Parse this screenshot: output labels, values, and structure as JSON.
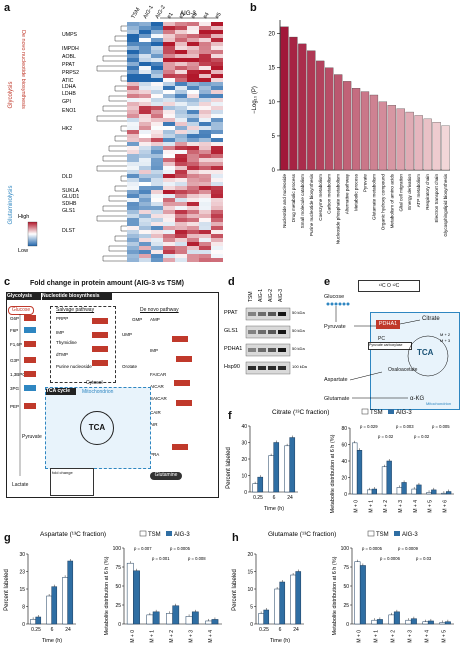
{
  "labels": {
    "a": "a",
    "b": "b",
    "c": "c",
    "d": "d",
    "e": "e",
    "f": "f",
    "g": "g",
    "h": "h"
  },
  "panel_a": {
    "columns": [
      "TSM",
      "AIG-1",
      "AIG-2",
      "#1",
      "#2",
      "#3",
      "#4",
      "#5"
    ],
    "group_label": "AIG-3",
    "side_denovo": "De novo nucleotide biosynthesis",
    "side_glycolysis": "Glycolysis",
    "side_glutaminolysis": "Glutaminolysis",
    "genes_denovo": [
      "UMPS",
      "IMPDH",
      "AOBL",
      "PPAT",
      "PRPS2",
      "ATIC"
    ],
    "genes_glyco": [
      "LDHA",
      "LDHB",
      "GPI",
      "ENO1",
      "HK2"
    ],
    "genes_gluta": [
      "DLD",
      "SUKLA",
      "GLUD1",
      "SDHB",
      "GLS1",
      "DLST"
    ],
    "legend_high": "High",
    "legend_low": "Low"
  },
  "panel_b": {
    "ylabel": "−Log₁₀ (P)",
    "yticks": [
      "0",
      "5",
      "10",
      "15",
      "20"
    ],
    "colors": {
      "dark": "#a1183a",
      "light": "#f2d6d8"
    }
  },
  "panel_c": {
    "title": "Fold change in protein amount (AIG-3 vs TSM)",
    "glycolysis": "Glycolysis",
    "nucleotide": "Nucleotide biosynthesis",
    "salvage": "Salvage pathway",
    "denovo": "De novo pathway",
    "tca": "TCA cycle",
    "mito": "Mitochondrion",
    "cytosol": "Cytosol",
    "glucose": "Glucose",
    "glutamine": "Glutamine",
    "center_tca": "TCA",
    "lactate": "Lactate",
    "pyruvate": "Pyruvate",
    "fold_label": "fold change"
  },
  "panel_d": {
    "cols": [
      "TSM",
      "AIG-1",
      "AIG-2",
      "AIG-3"
    ],
    "rows": [
      "PPAT",
      "GLS1",
      "PDHA1",
      "Hsp90"
    ],
    "kda": [
      "50 kDa",
      "50 kDa",
      "50 kDa",
      "100 kDa"
    ]
  },
  "panel_e": {
    "legend": "¹³C O ¹²C",
    "glucose": "Glucose",
    "pyruvate": "Pyruvate",
    "pdha1": "PDHA1",
    "pc": "PC",
    "pc_sub": "Pyruvate carboxylase",
    "citrate": "Citrate",
    "tca": "TCA",
    "oxaloacetate": "Oxaloacetate",
    "aspartate": "Aspartate",
    "glutamate": "Glutamate",
    "akg": "α-KG",
    "mito": "Mitochondrion",
    "m_plus": [
      "M + 2",
      "M + 3"
    ]
  },
  "panel_f": {
    "title": "Citrate (¹³C fraction)",
    "legend": [
      "TSM",
      "AIG-3"
    ],
    "ylabel_left": "Percent labeled",
    "ylabel_right": "Metabolite distribution at 6 h (%)",
    "xlabel": "Time (h)",
    "xticks": [
      "0.25",
      "6",
      "24"
    ],
    "mticks": [
      "M + 0",
      "M + 1",
      "M + 2",
      "M + 3",
      "M + 4",
      "M + 5",
      "M + 6"
    ],
    "pvals": [
      "p = 0.029",
      "p = 0.02",
      "p = 0.003",
      "p = 0.02",
      "p = 0.005"
    ]
  },
  "panel_g": {
    "title": "Aspartate (¹³C fraction)",
    "legend": [
      "TSM",
      "AIG-3"
    ],
    "ylabel_left": "Percent labeled",
    "ylabel_right": "Metabolite distribution at 6 h (%)",
    "xlabel": "Time (h)",
    "xticks": [
      "0.25",
      "6",
      "24"
    ],
    "mticks": [
      "M + 0",
      "M + 1",
      "M + 2",
      "M + 3",
      "M + 4"
    ],
    "pvals": [
      "p = 0.007",
      "p = 0.001",
      "p = 0.0005",
      "p = 0.008"
    ]
  },
  "panel_h": {
    "title": "Glutamate (¹³C fraction)",
    "legend": [
      "TSM",
      "AIG-3"
    ],
    "ylabel_left": "Percent labeled",
    "ylabel_right": "Metabolite distribution at 6 h (%)",
    "xlabel": "Time (h)",
    "xticks": [
      "0.25",
      "6",
      "24"
    ],
    "mticks": [
      "M + 0",
      "M + 1",
      "M + 2",
      "M + 3",
      "M + 4",
      "M + 5"
    ],
    "pvals": [
      "p = 0.0005",
      "p = 0.0006",
      "p = 0.0009",
      "p = 0.03"
    ]
  },
  "colors": {
    "tsm": "#ffffff",
    "aig3": "#2f6ea3",
    "accent": "#c0392b"
  },
  "chart_data": [
    {
      "type": "bar",
      "title": "",
      "ylabel": "−Log₁₀ (P)",
      "ylim": [
        0,
        22
      ],
      "categories": [
        "Nucleotide and nucleoside",
        "Drug metabolic process",
        "Small molecule catabolism",
        "Purine nucleotide biosynthesis",
        "Coenzyme metabolism",
        "Carbon metabolism",
        "Nucleoside phosphate metabolism",
        "Alternative pathway",
        "Metabolic process",
        "Pyruvate",
        "Glutamate metabolism",
        "Organic hydroxy compound",
        "Metabolism of amino acids",
        "Glial cell migration",
        "Energy derivation",
        "ATP metabolism",
        "Respiratory chain",
        "Electron transport chain",
        "Glycosphingolipid biosynthesis"
      ],
      "values": [
        21,
        19.5,
        18.5,
        17.5,
        16,
        15,
        14,
        13,
        12,
        11.5,
        11,
        10,
        9.5,
        9,
        8.5,
        8,
        7.5,
        7,
        6.5
      ]
    },
    {
      "type": "bar",
      "title": "Citrate (¹³C fraction)",
      "xlabel": "Time (h)",
      "ylabel": "Percent labeled",
      "categories": [
        "0.25",
        "6",
        "24"
      ],
      "series": [
        {
          "name": "TSM",
          "values": [
            5,
            22,
            28
          ]
        },
        {
          "name": "AIG-3",
          "values": [
            9,
            30,
            33
          ]
        }
      ],
      "ylim": [
        0,
        40
      ]
    },
    {
      "type": "bar",
      "title": "Citrate (¹³C fraction)",
      "ylabel": "Metabolite distribution at 6 h (%)",
      "categories": [
        "M + 0",
        "M + 1",
        "M + 2",
        "M + 3",
        "M + 4",
        "M + 5",
        "M + 6"
      ],
      "series": [
        {
          "name": "TSM",
          "values": [
            62,
            5,
            33,
            8,
            6,
            2,
            1
          ]
        },
        {
          "name": "AIG-3",
          "values": [
            53,
            6,
            40,
            14,
            11,
            5,
            3
          ]
        }
      ],
      "ylim": [
        0,
        80
      ]
    },
    {
      "type": "bar",
      "title": "Aspartate (¹³C fraction)",
      "xlabel": "Time (h)",
      "ylabel": "Percent labeled",
      "categories": [
        "0.25",
        "6",
        "24"
      ],
      "series": [
        {
          "name": "TSM",
          "values": [
            2,
            12,
            20
          ]
        },
        {
          "name": "AIG-3",
          "values": [
            3,
            16,
            27
          ]
        }
      ],
      "ylim": [
        0,
        30
      ]
    },
    {
      "type": "bar",
      "title": "Aspartate (¹³C fraction)",
      "ylabel": "Metabolite distribution at 6 h (%)",
      "categories": [
        "M + 0",
        "M + 1",
        "M + 2",
        "M + 3",
        "M + 4"
      ],
      "series": [
        {
          "name": "TSM",
          "values": [
            80,
            12,
            14,
            10,
            4
          ]
        },
        {
          "name": "AIG-3",
          "values": [
            70,
            16,
            24,
            16,
            6
          ]
        }
      ],
      "ylim": [
        0,
        100
      ]
    },
    {
      "type": "bar",
      "title": "Glutamate (¹³C fraction)",
      "xlabel": "Time (h)",
      "ylabel": "Percent labeled",
      "categories": [
        "0.25",
        "6",
        "24"
      ],
      "series": [
        {
          "name": "TSM",
          "values": [
            3,
            10,
            14
          ]
        },
        {
          "name": "AIG-3",
          "values": [
            4,
            12,
            15
          ]
        }
      ],
      "ylim": [
        0,
        20
      ]
    },
    {
      "type": "bar",
      "title": "Glutamate (¹³C fraction)",
      "ylabel": "Metabolite distribution at 6 h (%)",
      "categories": [
        "M + 0",
        "M + 1",
        "M + 2",
        "M + 3",
        "M + 4",
        "M + 5"
      ],
      "series": [
        {
          "name": "TSM",
          "values": [
            82,
            5,
            12,
            5,
            3,
            2
          ]
        },
        {
          "name": "AIG-3",
          "values": [
            77,
            6,
            16,
            7,
            4,
            3
          ]
        }
      ],
      "ylim": [
        0,
        100
      ]
    }
  ]
}
